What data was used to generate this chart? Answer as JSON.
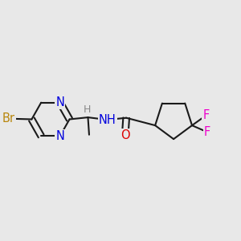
{
  "background_color": "#e8e8e8",
  "bond_color": "#1a1a1a",
  "bond_width": 1.5,
  "atom_colors": {
    "Br": "#b8860b",
    "N": "#0000dd",
    "O": "#dd0000",
    "F": "#ee00cc",
    "H": "#777777",
    "C": "#1a1a1a"
  },
  "font_size": 10.5,
  "figsize": [
    3.0,
    3.0
  ],
  "dpi": 100
}
